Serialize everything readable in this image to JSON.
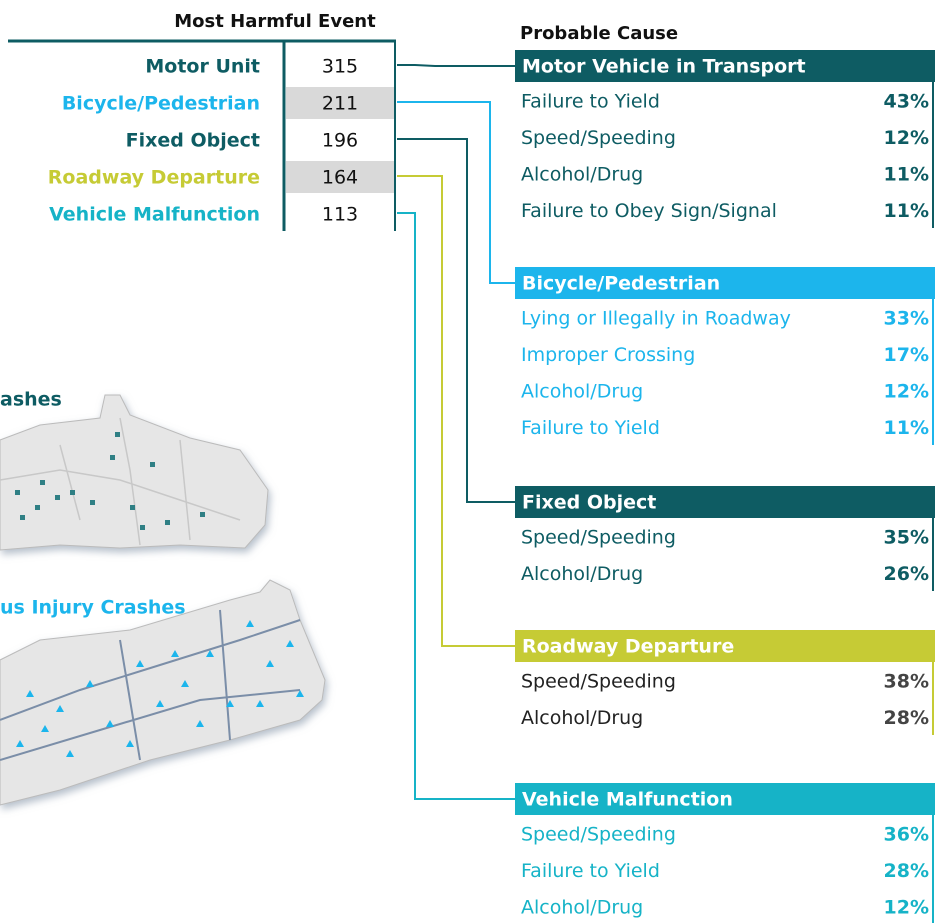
{
  "events": {
    "title": "Most Harmful Event",
    "rows": [
      {
        "label": "Motor Unit",
        "value": 315,
        "color": "#0e5c63"
      },
      {
        "label": "Bicycle/Pedestrian",
        "value": 211,
        "color": "#1cb5ec"
      },
      {
        "label": "Fixed Object",
        "value": 196,
        "color": "#0e5c63"
      },
      {
        "label": "Roadway Departure",
        "value": 164,
        "color": "#c6cb35"
      },
      {
        "label": "Vehicle Malfunction",
        "value": 113,
        "color": "#16b3c7"
      }
    ]
  },
  "causes": {
    "title": "Probable Cause",
    "groups": [
      {
        "title": "Motor Vehicle in Transport",
        "color": "#0e5c63",
        "text_color": "#0e5c63",
        "pct_color": "#0e5c63",
        "items": [
          {
            "label": "Failure to Yield",
            "pct": "43%"
          },
          {
            "label": "Speed/Speeding",
            "pct": "12%"
          },
          {
            "label": "Alcohol/Drug",
            "pct": "11%"
          },
          {
            "label": "Failure to Obey Sign/Signal",
            "pct": "11%"
          }
        ]
      },
      {
        "title": "Bicycle/Pedestrian",
        "color": "#1cb5ec",
        "text_color": "#1cb5ec",
        "pct_color": "#1cb5ec",
        "items": [
          {
            "label": "Lying or Illegally in Roadway",
            "pct": "33%"
          },
          {
            "label": "Improper Crossing",
            "pct": "17%"
          },
          {
            "label": "Alcohol/Drug",
            "pct": "12%"
          },
          {
            "label": "Failure to Yield",
            "pct": "11%"
          }
        ]
      },
      {
        "title": "Fixed Object",
        "color": "#0e5c63",
        "text_color": "#0e5c63",
        "pct_color": "#0e5c63",
        "items": [
          {
            "label": "Speed/Speeding",
            "pct": "35%"
          },
          {
            "label": "Alcohol/Drug",
            "pct": "26%"
          }
        ]
      },
      {
        "title": "Roadway Departure",
        "color": "#c6cb35",
        "text_color": "#222222",
        "pct_color": "#444444",
        "items": [
          {
            "label": "Speed/Speeding",
            "pct": "38%"
          },
          {
            "label": "Alcohol/Drug",
            "pct": "28%"
          }
        ]
      },
      {
        "title": "Vehicle Malfunction",
        "color": "#16b3c7",
        "text_color": "#16b3c7",
        "pct_color": "#16b3c7",
        "items": [
          {
            "label": "Speed/Speeding",
            "pct": "36%"
          },
          {
            "label": "Failure to Yield",
            "pct": "28%"
          },
          {
            "label": "Alcohol/Drug",
            "pct": "12%"
          }
        ]
      }
    ]
  },
  "maps": [
    {
      "title": "ashes",
      "color": "#0e5c63"
    },
    {
      "title": "us Injury Crashes",
      "color": "#1cb5ec"
    }
  ]
}
